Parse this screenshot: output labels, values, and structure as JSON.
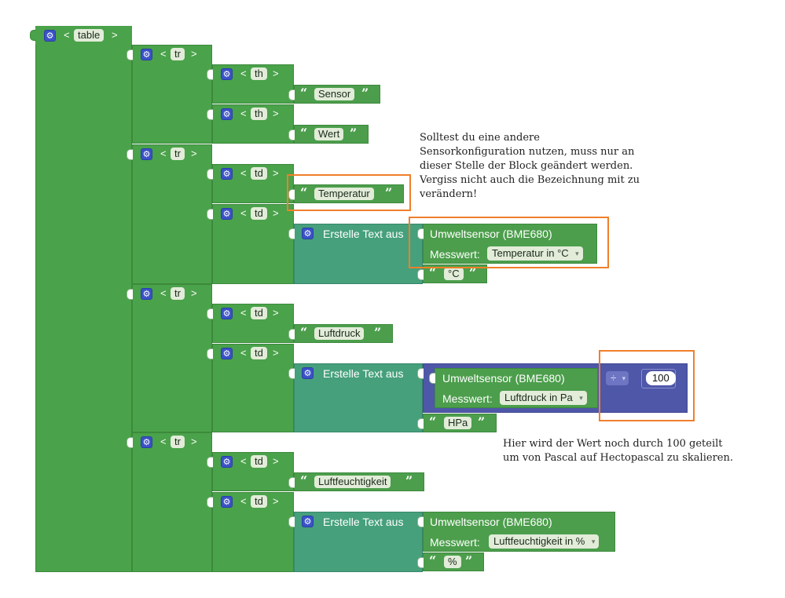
{
  "blocks": {
    "table_tag": "table",
    "tr_tag": "tr",
    "th_tag": "th",
    "td_tag": "td",
    "lt": "<",
    "gt": ">",
    "quote_open": "“",
    "quote_close": "”",
    "gear_glyph": "⚙",
    "text_sensor": "Sensor",
    "text_wert": "Wert",
    "text_temperatur": "Temperatur",
    "text_luftdruck": "Luftdruck",
    "text_luftfeuchtigkeit": "Luftfeuchtigkeit",
    "erstelle_text": "Erstelle Text aus",
    "sensor_title": "Umweltsensor (BME680)",
    "messwert_label": "Messwert:",
    "messwert_temp": "Temperatur in °C",
    "messwert_druck": "Luftdruck in Pa",
    "messwert_feuchte": "Luftfeuchtigkeit in %",
    "unit_c": "°C",
    "unit_hpa": "HPa",
    "unit_pct": "%",
    "divide_op": "÷",
    "divisor": "100",
    "dropdown_arrow": "▾"
  },
  "notes": {
    "note1": "Solltest du eine andere\nSensorkonfiguration nutzen, muss nur an\ndieser Stelle der Block geändert werden.\nVergiss nicht auch die Bezeichnung mit zu\nverändern!",
    "note2": "Hier wird der Wert noch durch 100 geteilt\num von Pascal auf Hectopascal zu skalieren."
  },
  "colors": {
    "block_green": "#4aa24a",
    "text_teal": "#46a07c",
    "math_purple": "#4f57a9",
    "highlight_orange": "#f07f2b",
    "gear_blue": "#3a52c6"
  }
}
